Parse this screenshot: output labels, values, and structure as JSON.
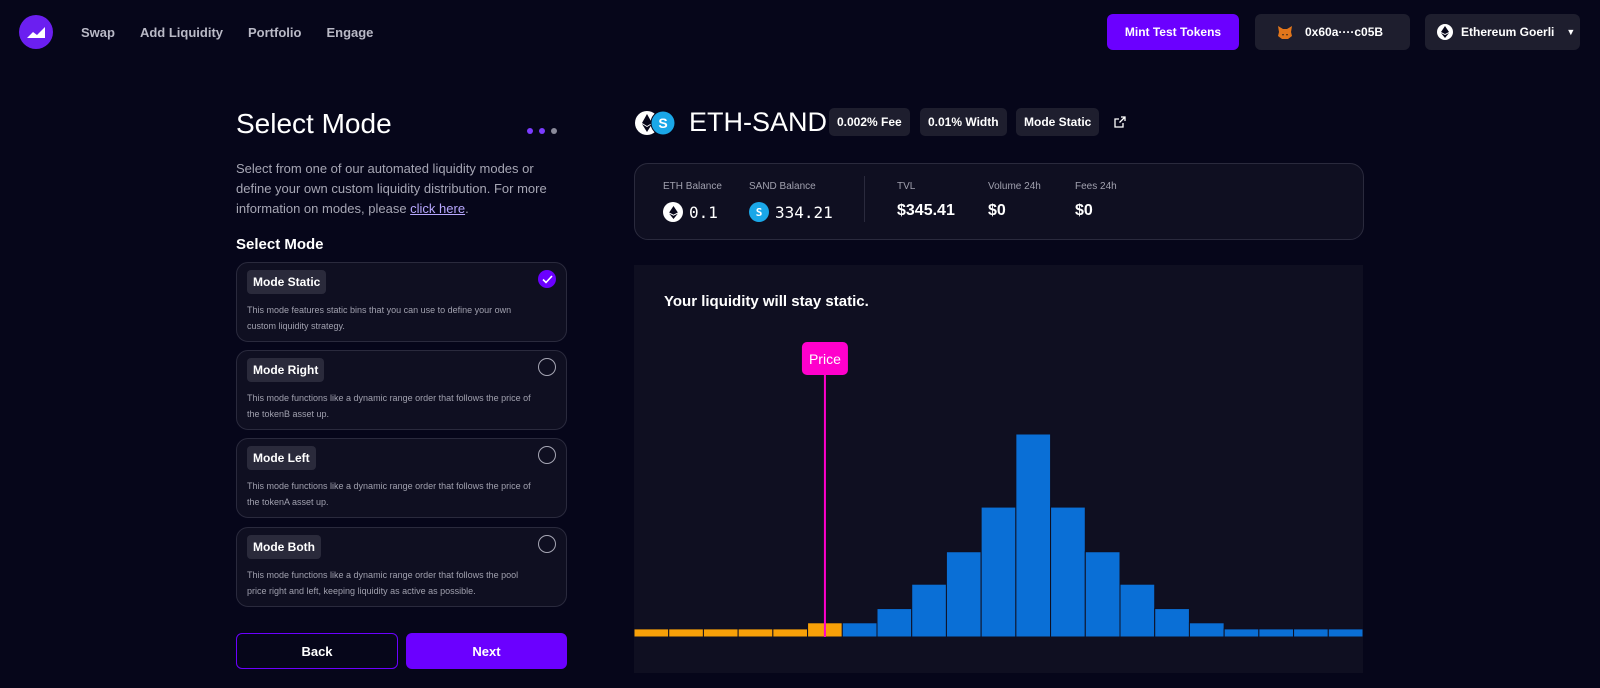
{
  "header": {
    "nav": [
      "Swap",
      "Add Liquidity",
      "Portfolio",
      "Engage"
    ],
    "mint_label": "Mint Test Tokens",
    "wallet_address": "0x60a····c05B",
    "network": "Ethereum Goerli"
  },
  "left": {
    "title": "Select Mode",
    "desc_text": "Select from one of our automated liquidity modes or define your own custom liquidity distribution. For more information on modes, please ",
    "desc_link": "click here",
    "desc_end": ".",
    "section_label": "Select Mode",
    "modes": [
      {
        "name": "Mode Static",
        "desc": "This mode features static bins that you can use to define your own custom liquidity strategy.",
        "selected": true
      },
      {
        "name": "Mode Right",
        "desc": "This mode functions like a dynamic range order that follows the price of the tokenB asset up.",
        "selected": false
      },
      {
        "name": "Mode Left",
        "desc": "This mode functions like a dynamic range order that follows the price of the tokenA asset up.",
        "selected": false
      },
      {
        "name": "Mode Both",
        "desc": "This mode functions like a dynamic range order that follows the pool price right and left, keeping liquidity as active as possible.",
        "selected": false
      }
    ],
    "back_label": "Back",
    "next_label": "Next"
  },
  "pool": {
    "name": "ETH-SAND",
    "fee": "0.002% Fee",
    "width": "0.01% Width",
    "mode": "Mode Static"
  },
  "stats": {
    "eth_label": "ETH Balance",
    "eth_value": "0.1",
    "sand_label": "SAND Balance",
    "sand_value": "334.21",
    "tvl_label": "TVL",
    "tvl_value": "$345.41",
    "volume_label": "Volume 24h",
    "volume_value": "$0",
    "fees_label": "Fees 24h",
    "fees_value": "$0"
  },
  "chart_data": {
    "type": "bar",
    "title": "Your liquidity will stay static.",
    "price_label": "Price",
    "price_index": 5.5,
    "ylim": [
      0,
      100
    ],
    "colors": {
      "left": "#f7a008",
      "right": "#0a6fd6",
      "price": "#ff00cc"
    },
    "bars": [
      {
        "side": "left",
        "value": 4
      },
      {
        "side": "left",
        "value": 4
      },
      {
        "side": "left",
        "value": 4
      },
      {
        "side": "left",
        "value": 4
      },
      {
        "side": "left",
        "value": 4
      },
      {
        "side": "left",
        "value": 7
      },
      {
        "side": "right",
        "value": 7
      },
      {
        "side": "right",
        "value": 14
      },
      {
        "side": "right",
        "value": 26
      },
      {
        "side": "right",
        "value": 42
      },
      {
        "side": "right",
        "value": 64
      },
      {
        "side": "right",
        "value": 100
      },
      {
        "side": "right",
        "value": 64
      },
      {
        "side": "right",
        "value": 42
      },
      {
        "side": "right",
        "value": 26
      },
      {
        "side": "right",
        "value": 14
      },
      {
        "side": "right",
        "value": 7
      },
      {
        "side": "right",
        "value": 4
      },
      {
        "side": "right",
        "value": 4
      },
      {
        "side": "right",
        "value": 4
      },
      {
        "side": "right",
        "value": 4
      }
    ]
  }
}
